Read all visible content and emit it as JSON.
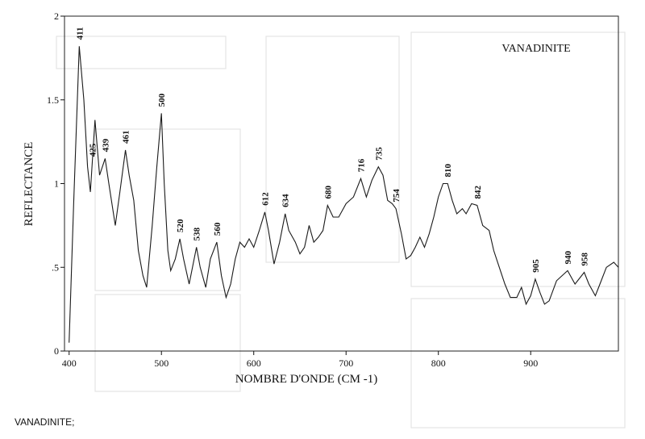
{
  "chart_data": {
    "type": "line",
    "title": "VANADINITE",
    "x_label": "NOMBRE D'ONDE (CM -1)",
    "y_label": "REFLECTANCE",
    "caption": "VANADINITE;",
    "xlim": [
      395,
      995
    ],
    "xticks": [
      400,
      500,
      600,
      700,
      800,
      900
    ],
    "ylim": [
      0,
      2
    ],
    "yticks": [
      0,
      {
        "value": 0.5,
        "label": ".5"
      },
      1,
      1.5,
      2
    ],
    "x": [
      400,
      405,
      411,
      416,
      420,
      423,
      428,
      433,
      439,
      443,
      450,
      455,
      461,
      465,
      470,
      475,
      480,
      484,
      490,
      495,
      500,
      503,
      507,
      510,
      515,
      520,
      524,
      530,
      538,
      542,
      548,
      553,
      560,
      565,
      570,
      575,
      580,
      585,
      590,
      595,
      600,
      606,
      612,
      616,
      622,
      628,
      634,
      638,
      645,
      650,
      655,
      660,
      665,
      670,
      675,
      680,
      686,
      692,
      700,
      708,
      716,
      722,
      728,
      735,
      740,
      745,
      750,
      754,
      760,
      765,
      770,
      775,
      780,
      785,
      790,
      795,
      800,
      805,
      810,
      815,
      820,
      826,
      830,
      836,
      842,
      848,
      855,
      860,
      866,
      872,
      878,
      885,
      890,
      895,
      900,
      905,
      910,
      915,
      920,
      928,
      940,
      948,
      958,
      963,
      970,
      975,
      982,
      990,
      995
    ],
    "series": [
      {
        "color": "#1a1a1a",
        "values": [
          0.05,
          0.9,
          1.82,
          1.5,
          1.1,
          0.95,
          1.38,
          1.05,
          1.15,
          1.0,
          0.75,
          0.95,
          1.2,
          1.05,
          0.9,
          0.6,
          0.45,
          0.38,
          0.75,
          1.1,
          1.42,
          1.0,
          0.6,
          0.48,
          0.55,
          0.67,
          0.55,
          0.4,
          0.62,
          0.5,
          0.38,
          0.55,
          0.65,
          0.45,
          0.32,
          0.4,
          0.55,
          0.65,
          0.62,
          0.67,
          0.62,
          0.72,
          0.83,
          0.72,
          0.52,
          0.65,
          0.82,
          0.72,
          0.65,
          0.58,
          0.62,
          0.75,
          0.65,
          0.68,
          0.72,
          0.87,
          0.8,
          0.8,
          0.88,
          0.92,
          1.03,
          0.92,
          1.02,
          1.1,
          1.05,
          0.9,
          0.88,
          0.85,
          0.7,
          0.55,
          0.57,
          0.62,
          0.68,
          0.62,
          0.7,
          0.8,
          0.92,
          1.0,
          1.0,
          0.9,
          0.82,
          0.85,
          0.82,
          0.88,
          0.87,
          0.75,
          0.72,
          0.6,
          0.5,
          0.4,
          0.32,
          0.32,
          0.38,
          0.28,
          0.33,
          0.43,
          0.35,
          0.28,
          0.3,
          0.42,
          0.48,
          0.4,
          0.47,
          0.4,
          0.33,
          0.4,
          0.5,
          0.53,
          0.5
        ]
      }
    ],
    "peak_labels": [
      411,
      425,
      439,
      461,
      500,
      520,
      538,
      560,
      612,
      634,
      680,
      716,
      735,
      754,
      810,
      842,
      905,
      940,
      958
    ]
  }
}
